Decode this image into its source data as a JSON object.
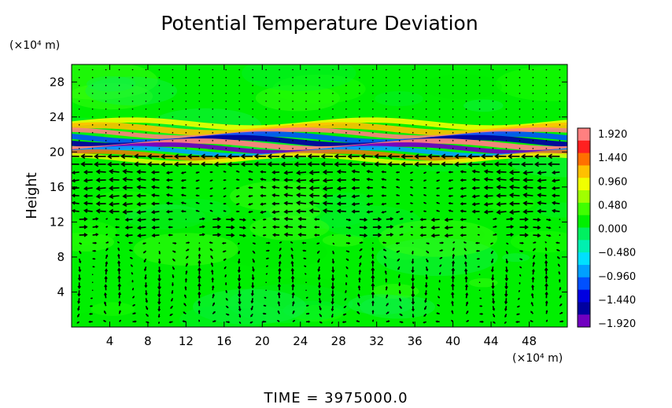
{
  "chart_data": {
    "type": "heatmap",
    "title": "Potential Temperature Deviation",
    "ylabel": "Height",
    "y_unit": "(×10⁴ m)",
    "x_unit": "(×10⁴ m)",
    "xlim": [
      0,
      52
    ],
    "ylim": [
      0,
      30
    ],
    "x_ticks": [
      "4",
      "8",
      "12",
      "16",
      "20",
      "24",
      "28",
      "32",
      "36",
      "40",
      "44",
      "48"
    ],
    "y_ticks": [
      "4",
      "8",
      "12",
      "16",
      "20",
      "24",
      "28"
    ],
    "colorbar": {
      "ticks": [
        "1.920",
        "1.440",
        "0.960",
        "0.480",
        "0.000",
        "−0.480",
        "−0.960",
        "−1.440",
        "−1.920"
      ],
      "min": -1.92,
      "max": 1.92,
      "colors": [
        "#ff8080",
        "#ff2020",
        "#ff7000",
        "#ffc000",
        "#f0ff00",
        "#a0ff00",
        "#40ff00",
        "#00f000",
        "#00f060",
        "#00f0b0",
        "#00e0ff",
        "#00a0ff",
        "#0050ff",
        "#0000e0",
        "#0000a0",
        "#7000c0"
      ]
    },
    "background_field": "≈0.0 (green)",
    "anomaly_bands": [
      {
        "y_center": 21.8,
        "description": "positive/negative alternating band near tropopause",
        "values": [
          1.44,
          -1.44,
          1.92,
          -1.92
        ]
      },
      {
        "y_center": 20.2,
        "description": "strong mixed band",
        "values": [
          1.92,
          -1.92
        ]
      }
    ],
    "vector_field": "wind vectors overlaid; strong easterly (leftward) flow near heights 14–20, circulation cells below 10",
    "time_label": "TIME  =  3975000.0"
  }
}
